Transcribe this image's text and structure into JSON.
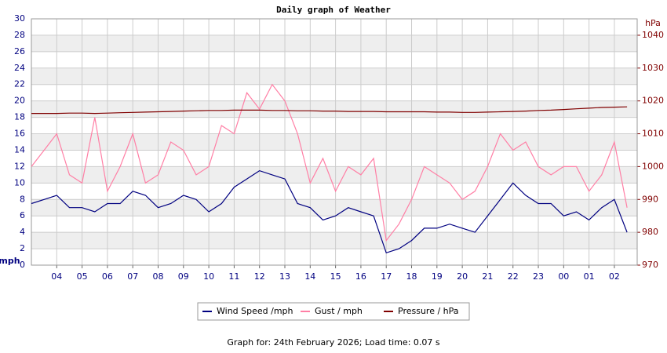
{
  "chart_data": {
    "type": "line",
    "title": "Daily graph of Weather",
    "y_label": "mph",
    "y2_label": "hPa",
    "footer": "Graph for: 24th February 2026; Load time: 0.07 s",
    "x": [
      3,
      3.5,
      4,
      4.5,
      5,
      5.5,
      6,
      6.5,
      7,
      7.5,
      8,
      8.5,
      9,
      9.5,
      10,
      10.5,
      11,
      11.5,
      12,
      12.5,
      13,
      13.5,
      14,
      14.5,
      15,
      15.5,
      16,
      16.5,
      17,
      17.5,
      18,
      18.5,
      19,
      19.5,
      20,
      20.5,
      21,
      21.5,
      22,
      22.5,
      23,
      23.5,
      24,
      24.5,
      25,
      25.5,
      26,
      26.5
    ],
    "xlim": [
      3,
      26.9
    ],
    "xticks": [
      {
        "value": 4,
        "label": "04"
      },
      {
        "value": 5,
        "label": "05"
      },
      {
        "value": 6,
        "label": "06"
      },
      {
        "value": 7,
        "label": "07"
      },
      {
        "value": 8,
        "label": "08"
      },
      {
        "value": 9,
        "label": "09"
      },
      10,
      11,
      12,
      13,
      14,
      15,
      16,
      17,
      18,
      19,
      20,
      21,
      22,
      23,
      {
        "value": 24,
        "label": "00"
      },
      {
        "value": 25,
        "label": "01"
      },
      {
        "value": 26,
        "label": "02"
      }
    ],
    "ylim": [
      0,
      30
    ],
    "yticks": [
      0,
      2,
      4,
      6,
      8,
      10,
      12,
      14,
      16,
      18,
      20,
      22,
      24,
      26,
      28,
      30
    ],
    "y2lim": [
      970,
      1045
    ],
    "y2ticks": [
      970,
      980,
      990,
      1000,
      1010,
      1020,
      1030,
      1040
    ],
    "grid": true,
    "series": [
      {
        "name": "Wind Speed /mph",
        "color": "#000080",
        "axis": "y",
        "values": [
          7.5,
          8,
          8.5,
          7,
          7,
          6.5,
          7.5,
          7.5,
          9,
          8.5,
          7,
          7.5,
          8.5,
          8,
          6.5,
          7.5,
          9.5,
          10.5,
          11.5,
          11,
          10.5,
          7.5,
          7,
          5.5,
          6,
          7,
          6.5,
          6,
          1.5,
          2,
          3,
          4.5,
          4.5,
          5,
          4.5,
          4,
          6,
          8,
          10,
          8.5,
          7.5,
          7.5,
          6,
          6.5,
          5.5,
          7,
          8,
          4
        ]
      },
      {
        "name": "Gust / mph",
        "color": "#ff7fa5",
        "axis": "y",
        "values": [
          12,
          14,
          16,
          11,
          10,
          18,
          9,
          12,
          16,
          10,
          11,
          15,
          14,
          11,
          12,
          17,
          16,
          21,
          19,
          22,
          20,
          16,
          10,
          13,
          9,
          12,
          11,
          13,
          3,
          5,
          8,
          12,
          11,
          10,
          8,
          9,
          12,
          16,
          14,
          15,
          12,
          11,
          12,
          12,
          9,
          11,
          15,
          7
        ]
      },
      {
        "name": "Pressure / hPa",
        "color": "#800000",
        "axis": "y2",
        "values": [
          1016.2,
          1016.2,
          1016.2,
          1016.3,
          1016.3,
          1016.2,
          1016.3,
          1016.4,
          1016.5,
          1016.6,
          1016.7,
          1016.8,
          1016.9,
          1017,
          1017.1,
          1017.1,
          1017.2,
          1017.2,
          1017.2,
          1017.1,
          1017.1,
          1017,
          1017,
          1016.9,
          1016.9,
          1016.8,
          1016.8,
          1016.8,
          1016.7,
          1016.7,
          1016.7,
          1016.7,
          1016.6,
          1016.6,
          1016.5,
          1016.5,
          1016.6,
          1016.7,
          1016.8,
          1016.9,
          1017.1,
          1017.2,
          1017.4,
          1017.6,
          1017.8,
          1018,
          1018.1,
          1018.2
        ]
      }
    ]
  }
}
